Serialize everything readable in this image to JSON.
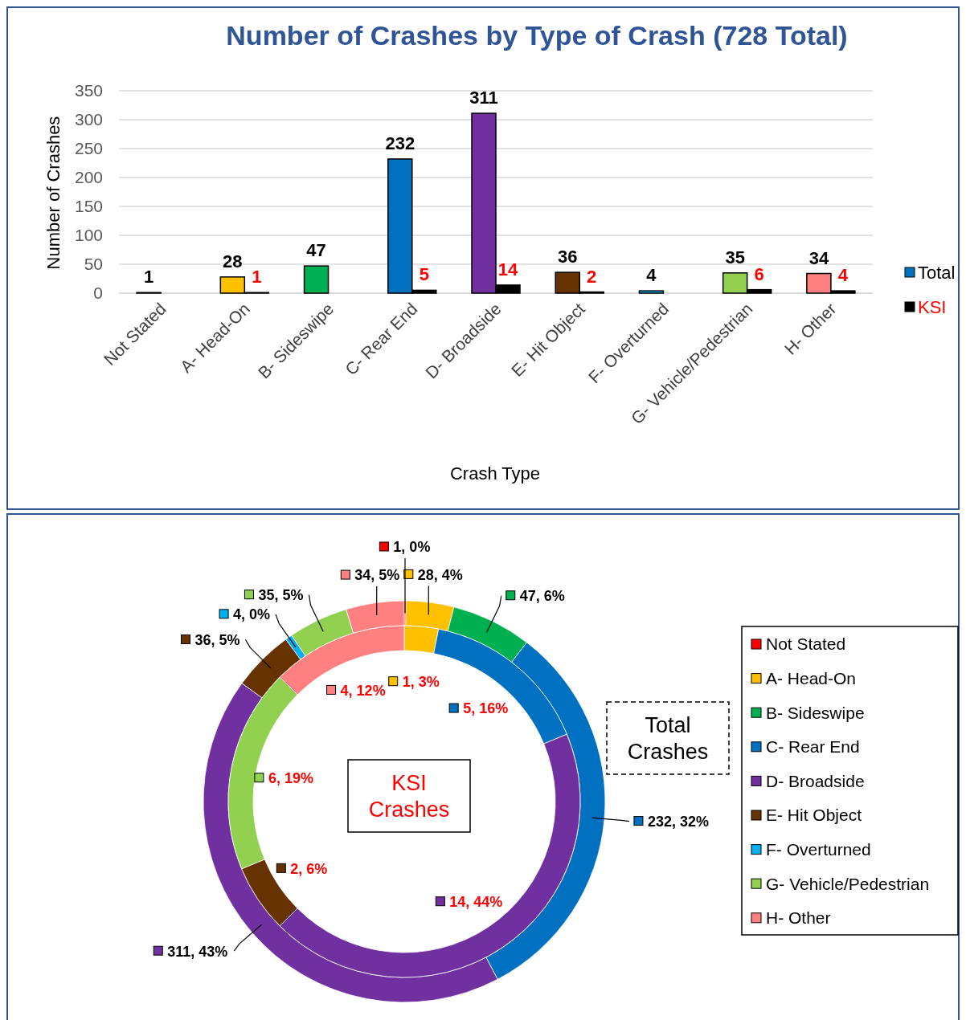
{
  "chart_data": [
    {
      "type": "bar",
      "title": "Number of Crashes by Type of Crash (728 Total)",
      "xlabel": "Crash Type",
      "ylabel": "Number  of Crashes",
      "categories": [
        "Not Stated",
        "A- Head-On",
        "B- Sideswipe",
        "C- Rear End",
        "D- Broadside",
        "E- Hit Object",
        "F- Overturned",
        "G- Vehicle/Pedestrian",
        "H- Other"
      ],
      "series": [
        {
          "name": "Total",
          "color": "#0070c0",
          "colors": [
            "#ff0000",
            "#ffc000",
            "#00b050",
            "#0070c0",
            "#7030a0",
            "#663300",
            "#00b0f0",
            "#92d050",
            "#ff8080"
          ],
          "values": [
            1,
            28,
            47,
            232,
            311,
            36,
            4,
            35,
            34
          ],
          "value_labels": [
            "1",
            "28",
            "47",
            "232",
            "311",
            "36",
            "4",
            "35",
            "34"
          ]
        },
        {
          "name": "KSI",
          "color": "#000000",
          "values": [
            0,
            1,
            0,
            5,
            14,
            2,
            0,
            6,
            4
          ],
          "value_labels": [
            null,
            "1",
            null,
            "5",
            "14",
            "2",
            null,
            "6",
            "4"
          ]
        }
      ],
      "ylim": [
        0,
        350
      ],
      "yticks": [
        0,
        50,
        100,
        150,
        200,
        250,
        300,
        350
      ],
      "grid": "y",
      "legend": "right"
    },
    {
      "type": "donut",
      "categories": [
        "Not Stated",
        "A- Head-On",
        "B- Sideswipe",
        "C- Rear End",
        "D- Broadside",
        "E- Hit Object",
        "F- Overturned",
        "G- Vehicle/Pedestrian",
        "H- Other"
      ],
      "colors": [
        "#ff0000",
        "#ffc000",
        "#00b050",
        "#0070c0",
        "#7030a0",
        "#663300",
        "#00b0f0",
        "#92d050",
        "#ff8080"
      ],
      "series": [
        {
          "name": "Total Crashes",
          "values": [
            1,
            28,
            47,
            232,
            311,
            36,
            4,
            35,
            34
          ],
          "value_labels": [
            "1, 0%",
            "28, 4%",
            "47, 6%",
            "232, 32%",
            "311, 43%",
            "36, 5%",
            "4, 0%",
            "35, 5%",
            "34, 5%"
          ]
        },
        {
          "name": "KSI Crashes",
          "values": [
            0,
            1,
            0,
            5,
            14,
            2,
            0,
            6,
            4
          ],
          "value_labels": [
            null,
            "1, 3%",
            null,
            "5, 16%",
            "14, 44%",
            "2, 6%",
            null,
            "6, 19%",
            "4, 12%"
          ]
        }
      ],
      "legend": "right"
    }
  ]
}
